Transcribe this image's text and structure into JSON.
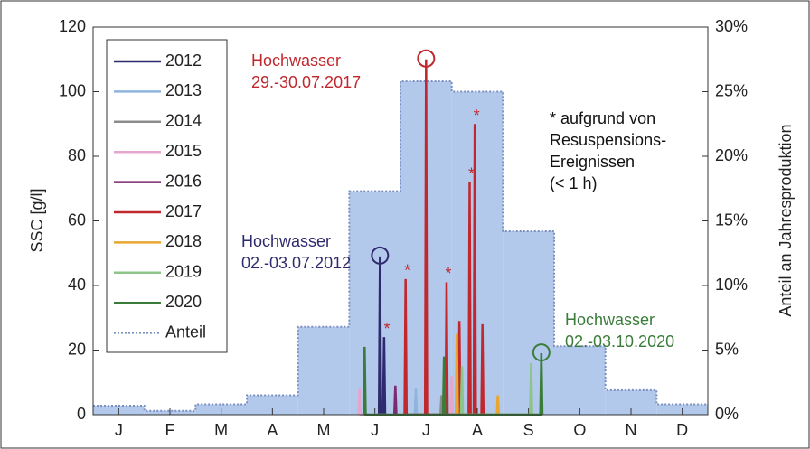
{
  "chart_data": {
    "type": "line",
    "ylabel": "SSC [g/l]",
    "y2label": "Anteil an Jahresproduktion",
    "xlim": [
      0,
      12
    ],
    "xticks": [
      {
        "value": 0.5,
        "label": "J"
      },
      {
        "value": 1.5,
        "label": "F"
      },
      {
        "value": 2.5,
        "label": "M"
      },
      {
        "value": 3.5,
        "label": "A"
      },
      {
        "value": 4.5,
        "label": "M"
      },
      {
        "value": 5.5,
        "label": "J"
      },
      {
        "value": 6.5,
        "label": "J"
      },
      {
        "value": 7.5,
        "label": "A"
      },
      {
        "value": 8.5,
        "label": "S"
      },
      {
        "value": 9.5,
        "label": "O"
      },
      {
        "value": 10.5,
        "label": "N"
      },
      {
        "value": 11.5,
        "label": "D"
      }
    ],
    "ylim": [
      0,
      120
    ],
    "yticks": [
      0,
      20,
      40,
      60,
      80,
      100,
      120
    ],
    "y2lim": [
      0,
      30
    ],
    "y2ticks": [
      {
        "value": 0,
        "label": "0%"
      },
      {
        "value": 5,
        "label": "5%"
      },
      {
        "value": 10,
        "label": "10%"
      },
      {
        "value": 15,
        "label": "15%"
      },
      {
        "value": 20,
        "label": "20%"
      },
      {
        "value": 25,
        "label": "25%"
      },
      {
        "value": 30,
        "label": "30%"
      }
    ],
    "series": [
      {
        "name": "2012",
        "color": "#2e2a6e",
        "x": [
          5.58,
          5.6,
          5.62,
          5.66,
          5.68,
          5.7
        ],
        "values": [
          0,
          49,
          0,
          0,
          24,
          0
        ]
      },
      {
        "name": "2013",
        "color": "#8fb4de",
        "x": [
          6.28,
          6.3,
          6.32
        ],
        "values": [
          0,
          8,
          0
        ]
      },
      {
        "name": "2014",
        "color": "#8c8c8c",
        "x": [
          6.78,
          6.8,
          6.82
        ],
        "values": [
          0,
          6,
          0
        ]
      },
      {
        "name": "2015",
        "color": "#e3a6cf",
        "x": [
          5.18,
          5.2,
          5.22,
          6.98,
          7.0,
          7.02
        ],
        "values": [
          0,
          8,
          0,
          0,
          12,
          0
        ]
      },
      {
        "name": "2016",
        "color": "#7b2a6e",
        "x": [
          5.88,
          5.9,
          5.92
        ],
        "values": [
          0,
          9,
          0
        ]
      },
      {
        "name": "2017",
        "color": "#c0282e",
        "x": [
          6.08,
          6.1,
          6.12,
          6.48,
          6.5,
          6.52,
          6.88,
          6.9,
          6.92,
          7.13,
          7.15,
          7.17,
          7.33,
          7.35,
          7.37,
          7.43,
          7.45,
          7.47,
          7.58,
          7.6,
          7.62
        ],
        "values": [
          0,
          42,
          0,
          0,
          110,
          0,
          0,
          41,
          0,
          0,
          29,
          0,
          0,
          72,
          0,
          0,
          90,
          0,
          0,
          28,
          0
        ]
      },
      {
        "name": "2018",
        "color": "#e8a630",
        "x": [
          7.08,
          7.1,
          7.12,
          7.88,
          7.9,
          7.92
        ],
        "values": [
          0,
          25,
          0,
          0,
          6,
          0
        ]
      },
      {
        "name": "2019",
        "color": "#8dc48a",
        "x": [
          7.18,
          7.2,
          7.22,
          8.53,
          8.55,
          8.57
        ],
        "values": [
          0,
          15,
          0,
          0,
          16,
          0
        ]
      },
      {
        "name": "2020",
        "color": "#3a7d3a",
        "x": [
          5.28,
          5.3,
          5.32,
          6.83,
          6.85,
          6.87,
          8.73,
          8.75,
          8.77
        ],
        "values": [
          0,
          21,
          0,
          0,
          18,
          0,
          0,
          19,
          0
        ]
      }
    ],
    "share": {
      "name": "Anteil",
      "color": "#7a8fc0",
      "fill": "#b3c9ec",
      "axis": "y2",
      "values": [
        0.7,
        0.3,
        0.8,
        1.5,
        6.8,
        17.3,
        25.8,
        25,
        14.2,
        5.3,
        1.9,
        0.8
      ]
    },
    "annotations": [
      {
        "lines": [
          "Hochwasser",
          "29.-30.07.2017"
        ],
        "color": "#c0282e"
      },
      {
        "lines": [
          "Hochwasser",
          "02.-03.07.2012"
        ],
        "color": "#2e2a6e"
      },
      {
        "lines": [
          "Hochwasser",
          "02.-03.10.2020"
        ],
        "color": "#3a7d3a"
      },
      {
        "lines": [
          "* aufgrund von",
          "Resuspensions-",
          "Ereignissen",
          "(< 1 h)"
        ],
        "color": "#111111"
      }
    ],
    "asterisk": "*"
  }
}
